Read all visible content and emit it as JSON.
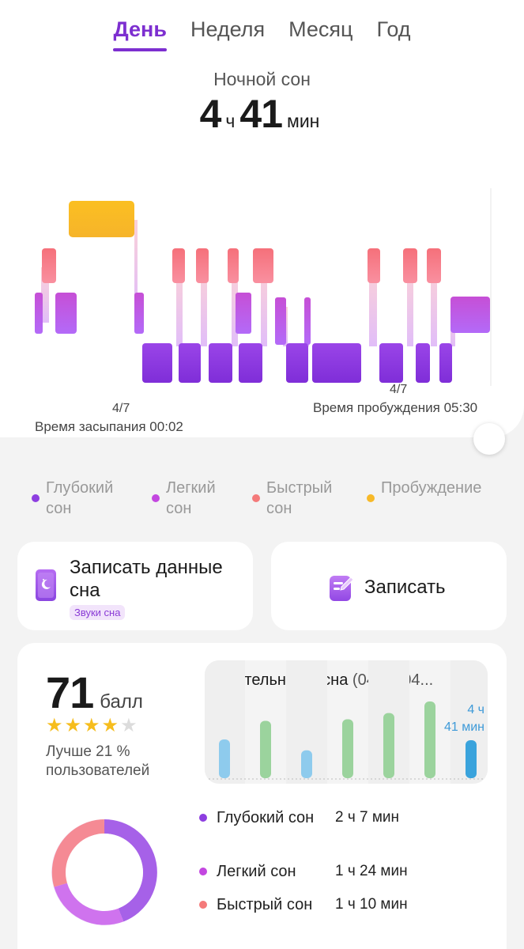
{
  "tabs": [
    {
      "label": "День",
      "active": true
    },
    {
      "label": "Неделя",
      "active": false
    },
    {
      "label": "Месяц",
      "active": false
    },
    {
      "label": "Год",
      "active": false
    }
  ],
  "summary": {
    "title": "Ночной сон",
    "hours": "4",
    "hours_unit": "ч",
    "minutes": "41",
    "minutes_unit": "мин"
  },
  "hypnogram": {
    "start_date": "4/7",
    "start_label": "Время засыпания 00:02",
    "end_date": "4/7",
    "end_label": "Время пробуждения 05:30",
    "colors": {
      "deep": "#8d3ee0",
      "light": "#bc5ef0",
      "rem": "#f6747a",
      "awake": "#f8bb22"
    }
  },
  "legend": [
    {
      "label": "Глубокий сон",
      "color": "#8d3ee0"
    },
    {
      "label": "Легкий сон",
      "color": "#c347e0"
    },
    {
      "label": "Быстрый сон",
      "color": "#f47a7a"
    },
    {
      "label": "Пробуждение",
      "color": "#f7b928"
    }
  ],
  "record_data": {
    "title": "Записать данные сна",
    "chip": "Звуки сна",
    "icon": "sleep-tracker-icon"
  },
  "record": {
    "title": "Записать",
    "icon": "note-edit-icon"
  },
  "score": {
    "value": "71",
    "unit": "балл",
    "stars": 4,
    "stars_max": 5,
    "comparison": "Лучше 21 % пользователей"
  },
  "duration": {
    "title": "Длительность сна",
    "range": "(04/01-04...",
    "last_hours": "4 ч",
    "last_minutes": "41 мин",
    "bars": [
      {
        "fraction": 0.5,
        "color": "#8ecbed"
      },
      {
        "fraction": 0.74,
        "color": "#9bd39d"
      },
      {
        "fraction": 0.36,
        "color": "#8ecbed"
      },
      {
        "fraction": 0.76,
        "color": "#9bd39d"
      },
      {
        "fraction": 0.84,
        "color": "#9bd39d"
      },
      {
        "fraction": 0.99,
        "color": "#9bd39d"
      },
      {
        "fraction": 0.49,
        "color": "#3aa3dc"
      }
    ]
  },
  "stages": [
    {
      "name": "Глубокий сон",
      "value": "2 ч 7 мин",
      "color": "#8d3ee0"
    },
    {
      "name": "Легкий сон",
      "value": "1 ч 24 мин",
      "color": "#c347e0"
    },
    {
      "name": "Быстрый сон",
      "value": "1 ч 10 мин",
      "color": "#f47a7a"
    }
  ]
}
